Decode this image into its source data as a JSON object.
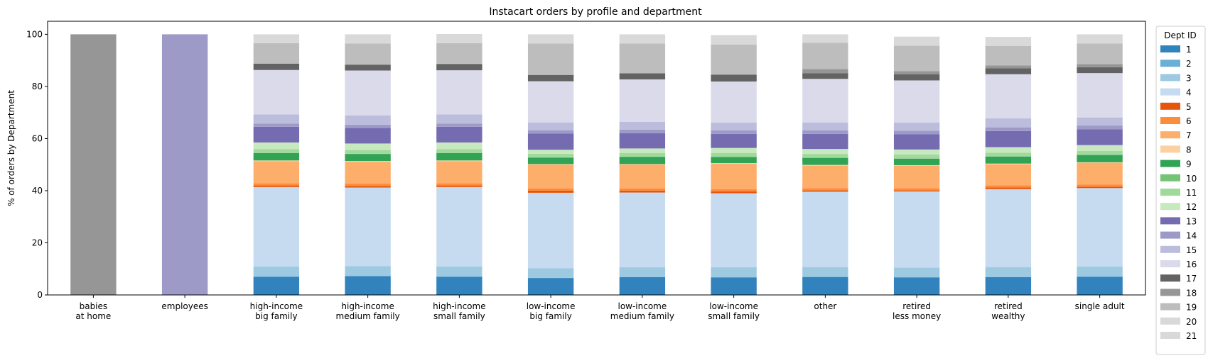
{
  "chart_data": {
    "type": "bar",
    "stacked": true,
    "title": "Instacart orders by profile and department",
    "xlabel": "",
    "ylabel": "% of orders by Department",
    "ylim": [
      0,
      105
    ],
    "yticks": [
      0,
      20,
      40,
      60,
      80,
      100
    ],
    "grid": false,
    "legend": {
      "title": "Dept ID",
      "placement": "outside-right"
    },
    "categories": [
      [
        "babies",
        "at home"
      ],
      [
        "employees"
      ],
      [
        "high-income",
        "big family"
      ],
      [
        "high-income",
        "medium family"
      ],
      [
        "high-income",
        "small family"
      ],
      [
        "low-income",
        "big family"
      ],
      [
        "low-income",
        "medium family"
      ],
      [
        "low-income",
        "small family"
      ],
      [
        "other"
      ],
      [
        "retired",
        "less money"
      ],
      [
        "retired",
        "wealthy"
      ],
      [
        "single adult"
      ]
    ],
    "series": [
      {
        "name": "1",
        "color": "#3182bd",
        "values": [
          0,
          0,
          7.0,
          7.2,
          7.0,
          6.5,
          6.8,
          6.7,
          6.9,
          6.7,
          6.8,
          7.0
        ]
      },
      {
        "name": "2",
        "color": "#6baed6",
        "values": [
          0,
          0,
          0.1,
          0.1,
          0.1,
          0.1,
          0.1,
          0.1,
          0.1,
          0.1,
          0.1,
          0.1
        ]
      },
      {
        "name": "3",
        "color": "#9ecae1",
        "values": [
          0,
          0,
          3.8,
          3.8,
          3.8,
          3.6,
          3.7,
          3.8,
          3.7,
          3.7,
          3.8,
          3.8
        ]
      },
      {
        "name": "4",
        "color": "#c6dbef",
        "values": [
          0,
          0,
          30.5,
          30.1,
          30.5,
          29.0,
          28.7,
          28.4,
          28.9,
          29.2,
          29.9,
          30.1
        ]
      },
      {
        "name": "5",
        "color": "#e6550d",
        "values": [
          0,
          0,
          0.6,
          0.6,
          0.6,
          0.8,
          0.7,
          0.7,
          0.5,
          0.4,
          0.6,
          0.5
        ]
      },
      {
        "name": "6",
        "color": "#fd8d3c",
        "values": [
          0,
          0,
          0.9,
          0.9,
          0.9,
          0.9,
          0.9,
          0.9,
          0.9,
          0.9,
          0.9,
          0.9
        ]
      },
      {
        "name": "7",
        "color": "#fdae6b",
        "values": [
          0,
          0,
          8.4,
          8.4,
          8.4,
          9.0,
          9.0,
          9.7,
          8.6,
          8.5,
          8.0,
          8.2
        ]
      },
      {
        "name": "8",
        "color": "#fdd0a2",
        "values": [
          0,
          0,
          0.3,
          0.3,
          0.3,
          0.3,
          0.3,
          0.3,
          0.3,
          0.3,
          0.3,
          0.3
        ]
      },
      {
        "name": "9",
        "color": "#31a354",
        "values": [
          0,
          0,
          2.8,
          2.7,
          2.8,
          2.5,
          2.8,
          2.3,
          2.7,
          2.5,
          2.7,
          2.8
        ]
      },
      {
        "name": "10",
        "color": "#74c476",
        "values": [
          0,
          0,
          0.1,
          0.1,
          0.1,
          0.1,
          0.1,
          0.1,
          0.1,
          0.1,
          0.1,
          0.1
        ]
      },
      {
        "name": "11",
        "color": "#a1d99b",
        "values": [
          0,
          0,
          1.4,
          1.4,
          1.4,
          1.4,
          1.4,
          1.5,
          1.4,
          1.5,
          1.4,
          1.5
        ]
      },
      {
        "name": "12",
        "color": "#c7e9c0",
        "values": [
          0,
          0,
          2.6,
          2.5,
          2.6,
          1.5,
          1.7,
          1.9,
          1.9,
          1.9,
          2.1,
          2.2
        ]
      },
      {
        "name": "13",
        "color": "#756bb1",
        "values": [
          0,
          0,
          6.0,
          6.0,
          6.0,
          6.2,
          5.9,
          5.4,
          5.8,
          5.9,
          6.2,
          6.1
        ]
      },
      {
        "name": "14",
        "color": "#9e9ac8",
        "values": [
          0,
          0,
          1.2,
          1.2,
          1.2,
          1.3,
          1.3,
          1.3,
          1.3,
          1.3,
          1.4,
          1.4
        ]
      },
      {
        "name": "15",
        "color": "#bcbddc",
        "values": [
          0,
          0,
          3.6,
          3.6,
          3.6,
          3.0,
          3.0,
          3.0,
          3.1,
          3.1,
          3.5,
          3.1
        ]
      },
      {
        "name": "16",
        "color": "#dadaeb",
        "values": [
          0,
          0,
          17.0,
          17.2,
          16.9,
          15.8,
          16.3,
          15.8,
          16.7,
          16.2,
          16.9,
          17.0
        ]
      },
      {
        "name": "17",
        "color": "#636363",
        "values": [
          0,
          0,
          2.4,
          2.2,
          2.4,
          2.4,
          2.3,
          2.6,
          2.2,
          2.4,
          2.3,
          2.3
        ]
      },
      {
        "name": "18",
        "color": "#969696",
        "values": [
          100,
          0,
          0.1,
          0.2,
          0.1,
          0.1,
          0.1,
          0.1,
          1.6,
          1.2,
          1.0,
          1.2
        ]
      },
      {
        "name": "19",
        "color": "#bdbdbd",
        "values": [
          0,
          0,
          7.8,
          8.0,
          7.9,
          12.0,
          11.4,
          11.5,
          10.0,
          9.7,
          7.5,
          7.9
        ]
      },
      {
        "name": "20",
        "color": "#d9d9d9",
        "values": [
          0,
          0,
          3.4,
          3.5,
          3.5,
          3.5,
          3.5,
          3.6,
          3.3,
          3.5,
          3.5,
          3.5
        ]
      },
      {
        "name": "21",
        "color": "#d9d9d9",
        "values": [
          0,
          100,
          0,
          0,
          0,
          0,
          0,
          0,
          0,
          0,
          0,
          0
        ]
      }
    ],
    "overrides": [
      {
        "category_index": 1,
        "series": "21",
        "color": "#9e9ac8"
      }
    ]
  }
}
